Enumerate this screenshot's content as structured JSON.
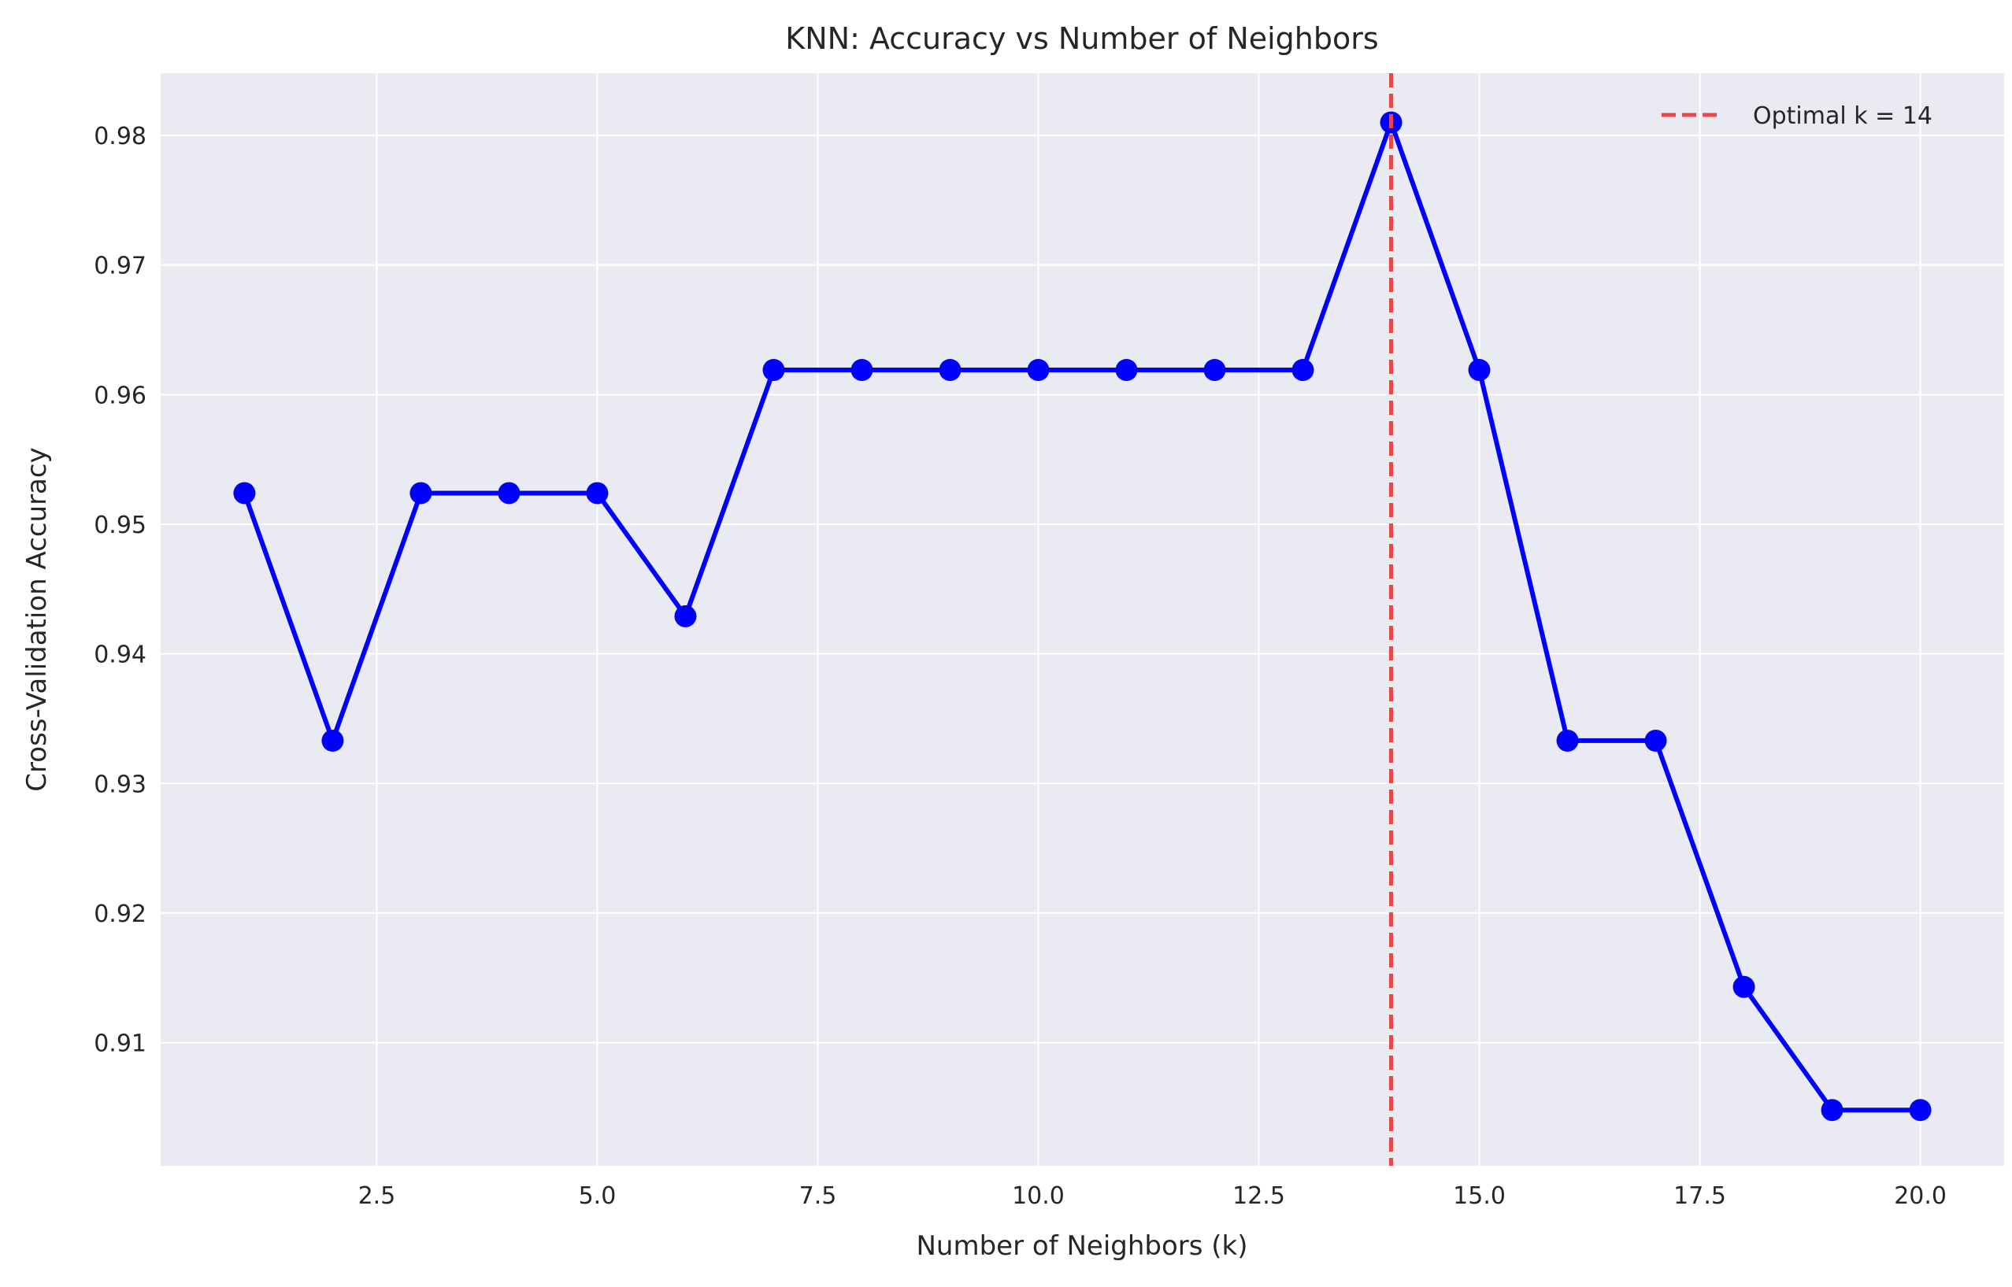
{
  "chart_data": {
    "type": "line",
    "title": "KNN: Accuracy vs Number of Neighbors",
    "xlabel": "Number of Neighbors (k)",
    "ylabel": "Cross-Validation Accuracy",
    "xlim": [
      0.05,
      20.95
    ],
    "ylim": [
      0.9005,
      0.9848
    ],
    "xticks": [
      2.5,
      5.0,
      7.5,
      10.0,
      12.5,
      15.0,
      17.5,
      20.0
    ],
    "xtick_labels": [
      "2.5",
      "5.0",
      "7.5",
      "10.0",
      "12.5",
      "15.0",
      "17.5",
      "20.0"
    ],
    "yticks": [
      0.91,
      0.92,
      0.93,
      0.94,
      0.95,
      0.96,
      0.97,
      0.98
    ],
    "ytick_labels": [
      "0.91",
      "0.92",
      "0.93",
      "0.94",
      "0.95",
      "0.96",
      "0.97",
      "0.98"
    ],
    "grid": true,
    "series": [
      {
        "color": "#0000ff",
        "marker": "circle",
        "x": [
          1,
          2,
          3,
          4,
          5,
          6,
          7,
          8,
          9,
          10,
          11,
          12,
          13,
          14,
          15,
          16,
          17,
          18,
          19,
          20
        ],
        "y": [
          0.9524,
          0.9333,
          0.9524,
          0.9524,
          0.9524,
          0.9429,
          0.9619,
          0.9619,
          0.9619,
          0.9619,
          0.9619,
          0.9619,
          0.9619,
          0.981,
          0.9619,
          0.9333,
          0.9333,
          0.9143,
          0.9048,
          0.9048
        ]
      }
    ],
    "annotations": [
      {
        "type": "vline",
        "x": 14,
        "color": "#e8474b",
        "style": "dashed",
        "label": "Optimal k = 14"
      }
    ],
    "legend": {
      "position": "top-right",
      "entries": [
        "Optimal k = 14"
      ]
    },
    "colors": {
      "plot_bg": "#eaeaf2",
      "grid": "#ffffff",
      "line": "#0000ff",
      "vline": "#e8474b"
    }
  }
}
